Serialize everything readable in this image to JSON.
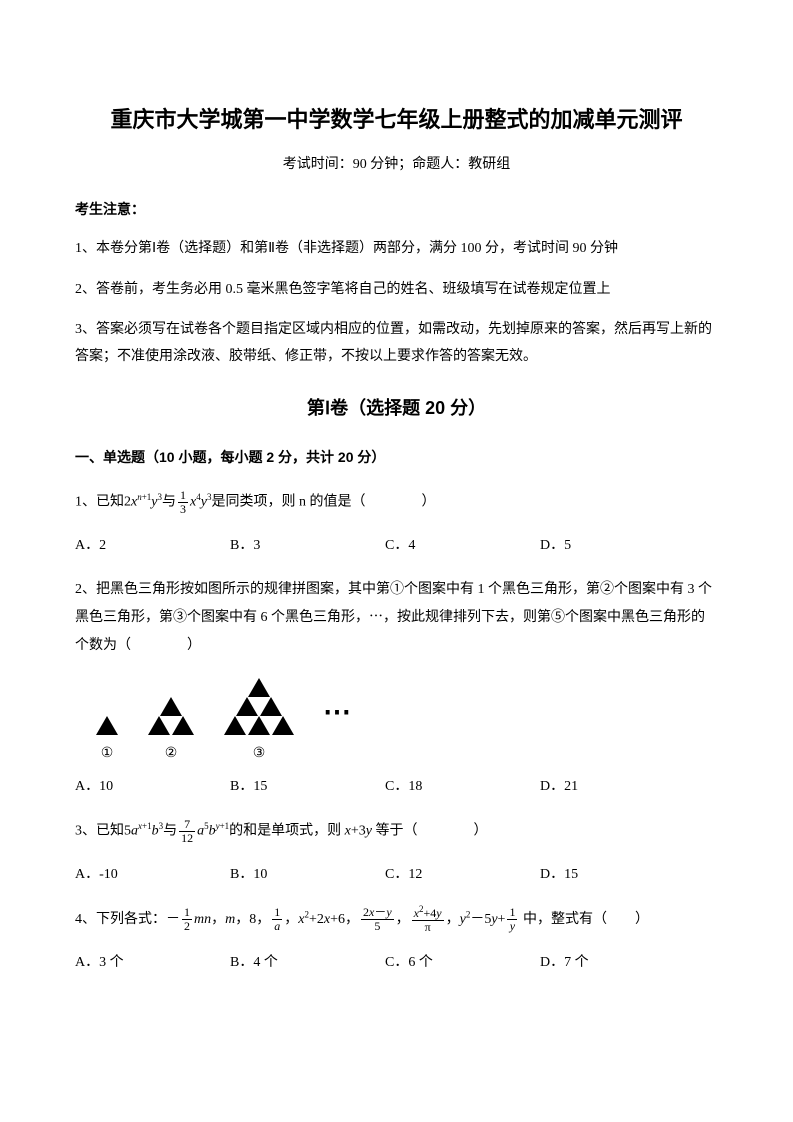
{
  "title": "重庆市大学城第一中学数学七年级上册整式的加减单元测评",
  "subtitle": "考试时间：90 分钟；命题人：教研组",
  "notice_header": "考生注意：",
  "notices": [
    "1、本卷分第Ⅰ卷（选择题）和第Ⅱ卷（非选择题）两部分，满分 100 分，考试时间 90 分钟",
    "2、答卷前，考生务必用 0.5 毫米黑色签字笔将自己的姓名、班级填写在试卷规定位置上",
    "3、答案必须写在试卷各个题目指定区域内相应的位置，如需改动，先划掉原来的答案，然后再写上新的答案；不准使用涂改液、胶带纸、修正带，不按以上要求作答的答案无效。"
  ],
  "section1_header": "第Ⅰ卷（选择题  20 分）",
  "subsection1": "一、单选题（10 小题，每小题 2 分，共计 20 分）",
  "q1": {
    "prefix": "1、已知",
    "mid": "是同类项，则 n 的值是（　　　　）",
    "options": {
      "a": "A．2",
      "b": "B．3",
      "c": "C．4",
      "d": "D．5"
    }
  },
  "q2": {
    "text": "2、把黑色三角形按如图所示的规律拼图案，其中第①个图案中有 1 个黑色三角形，第②个图案中有 3 个黑色三角形，第③个图案中有 6 个黑色三角形，⋯，按此规律排列下去，则第⑤个图案中黑色三角形的个数为（　　　　）",
    "labels": [
      "①",
      "②",
      "③"
    ],
    "dots": "⋯",
    "options": {
      "a": "A．10",
      "b": "B．15",
      "c": "C．18",
      "d": "D．21"
    }
  },
  "q3": {
    "prefix": "3、已知",
    "mid": "的和是单项式，则",
    "suffix": "等于（　　　　）",
    "options": {
      "a": "A．-10",
      "b": "B．10",
      "c": "C．12",
      "d": "D．15"
    }
  },
  "q4": {
    "prefix": "4、下列各式：",
    "suffix": "中，整式有（　　）",
    "options": {
      "a": "A．3 个",
      "b": "B．4 个",
      "c": "C．6 个",
      "d": "D．7 个"
    }
  },
  "colors": {
    "text": "#000000",
    "background": "#ffffff",
    "triangle": "#000000"
  },
  "fonts": {
    "title_size": 22,
    "body_size": 14,
    "section_size": 18
  }
}
